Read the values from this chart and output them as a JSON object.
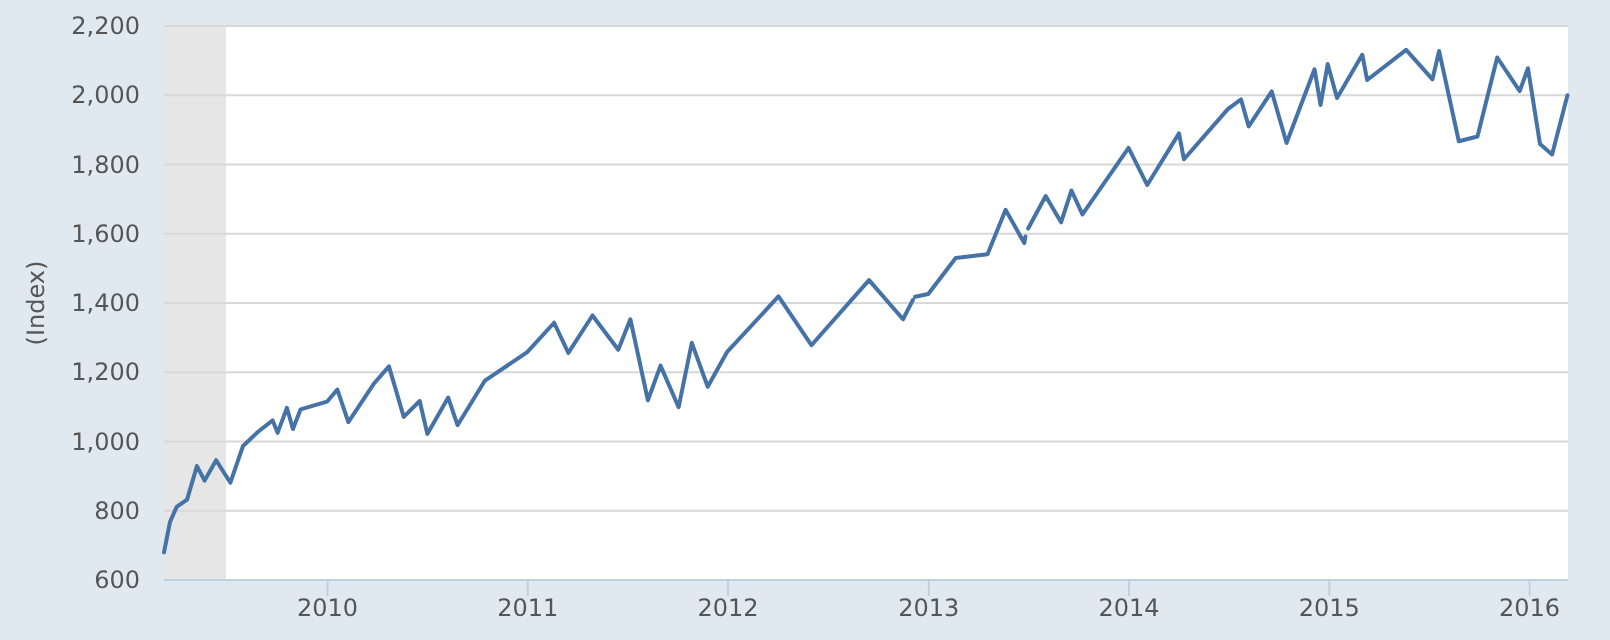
{
  "chart_data": {
    "type": "line",
    "ylabel": "(Index)",
    "xlim": [
      "2009-03-09",
      "2016-03-11"
    ],
    "xticks": [
      {
        "value": "2010",
        "label": "2010"
      },
      {
        "value": "2011",
        "label": "2011"
      },
      {
        "value": "2012",
        "label": "2012"
      },
      {
        "value": "2013",
        "label": "2013"
      },
      {
        "value": "2014",
        "label": "2014"
      },
      {
        "value": "2015",
        "label": "2015"
      },
      {
        "value": "2016",
        "label": "2016"
      }
    ],
    "ylim": [
      600,
      2200
    ],
    "yticks": [
      600,
      800,
      {
        "value": 1000,
        "label": "1,000"
      },
      {
        "value": 1200,
        "label": "1,200"
      },
      {
        "value": 1400,
        "label": "1,400"
      },
      {
        "value": 1600,
        "label": "1,600"
      },
      {
        "value": 1800,
        "label": "1,800"
      },
      {
        "value": 2000,
        "label": "2,000"
      },
      {
        "value": 2200,
        "label": "2,200"
      }
    ],
    "grid": "y",
    "line_style": "solid",
    "marker": "none",
    "bands": [
      {
        "axis": "x",
        "from": "2009-03-09",
        "to": "2009-06-30",
        "color": "#e6e6e6"
      }
    ],
    "x": [
      "2009-03-09",
      "2009-03-20",
      "2009-04-01",
      "2009-04-20",
      "2009-05-08",
      "2009-05-22",
      "2009-06-12",
      "2009-07-08",
      "2009-07-31",
      "2009-08-28",
      "2009-09-23",
      "2009-10-02",
      "2009-10-19",
      "2009-10-30",
      "2009-11-13",
      "2009-12-31",
      "2010-01-19",
      "2010-02-08",
      "2010-03-26",
      "2010-04-23",
      "2010-05-20",
      "2010-06-18",
      "2010-07-02",
      "2010-08-09",
      "2010-08-26",
      "2010-10-15",
      "2010-12-31",
      "2011-02-18",
      "2011-03-16",
      "2011-04-29",
      "2011-06-15",
      "2011-07-07",
      "2011-08-08",
      "2011-08-31",
      "2011-10-03",
      "2011-10-27",
      "2011-11-25",
      "2011-12-30",
      "2012-04-02",
      "2012-06-01",
      "2012-09-14",
      "2012-11-15",
      "2012-12-03",
      "2012-12-05",
      "2012-12-07",
      "2012-12-31",
      "2013-02-19",
      "2013-04-18",
      "2013-05-21",
      "2013-06-24",
      "2013-06-26",
      "2013-06-28",
      "2013-07-01",
      "2013-08-02",
      "2013-08-30",
      "2013-09-18",
      "2013-10-08",
      "2013-12-31",
      "2014-02-03",
      "2014-04-02",
      "2014-04-11",
      "2014-06-30",
      "2014-07-24",
      "2014-08-07",
      "2014-09-18",
      "2014-10-15",
      "2014-12-05",
      "2014-12-16",
      "2014-12-29",
      "2015-01-15",
      "2015-03-02",
      "2015-03-11",
      "2015-05-21",
      "2015-07-08",
      "2015-07-20",
      "2015-08-25",
      "2015-09-28",
      "2015-11-03",
      "2015-12-14",
      "2015-12-29",
      "2016-01-20",
      "2016-02-11",
      "2016-03-10"
    ],
    "series": [
      {
        "color": "#4572a7",
        "values": [
          680,
          768,
          811,
          832,
          929,
          887,
          946,
          881,
          987,
          1029,
          1061,
          1025,
          1097,
          1036,
          1093,
          1115,
          1150,
          1056,
          1166,
          1217,
          1071,
          1117,
          1022,
          1127,
          1047,
          1176,
          1258,
          1343,
          1256,
          1364,
          1265,
          1353,
          1119,
          1219,
          1099,
          1285,
          1158,
          1258,
          1419,
          1278,
          1466,
          1353,
          1409,
          null,
          1418,
          1426,
          1530,
          1541,
          1669,
          1573,
          1592,
          null,
          1615,
          1709,
          1633,
          1725,
          1656,
          1848,
          1741,
          1890,
          1815,
          1960,
          1988,
          1910,
          2011,
          1862,
          2075,
          1972,
          2090,
          1992,
          2117,
          2044,
          2131,
          2046,
          2128,
          1867,
          1881,
          2109,
          2012,
          2078,
          1859,
          1829,
          2000
        ]
      }
    ]
  }
}
